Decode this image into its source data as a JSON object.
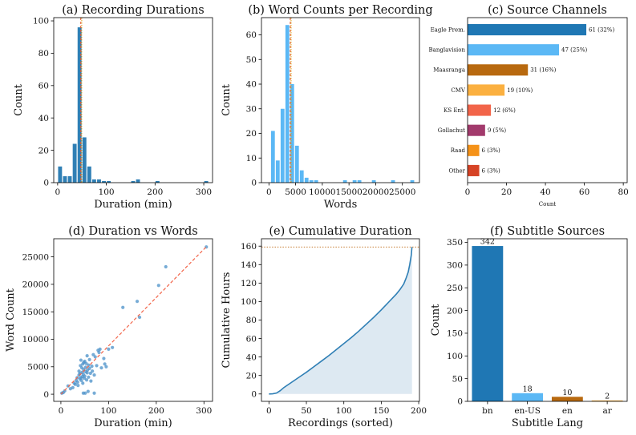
{
  "chart_data": [
    {
      "id": "a",
      "type": "bar",
      "title": "(a) Recording Durations",
      "xlabel": "Duration (min)",
      "ylabel": "Count",
      "xlim": [
        -8,
        318
      ],
      "ylim": [
        0,
        102
      ],
      "xticks": [
        0,
        100,
        200,
        300
      ],
      "yticks": [
        0,
        20,
        40,
        60,
        80,
        100
      ],
      "bin_width": 10,
      "bins": [
        [
          0,
          10
        ],
        [
          10,
          4
        ],
        [
          20,
          4
        ],
        [
          30,
          24
        ],
        [
          40,
          96
        ],
        [
          50,
          28
        ],
        [
          60,
          10
        ],
        [
          70,
          2
        ],
        [
          80,
          2
        ],
        [
          90,
          1
        ],
        [
          100,
          1
        ],
        [
          150,
          1
        ],
        [
          160,
          2
        ],
        [
          200,
          1
        ],
        [
          300,
          1
        ]
      ],
      "mean": 47.5,
      "median": 49.5,
      "color": "#2f7fb5"
    },
    {
      "id": "b",
      "type": "bar",
      "title": "(b) Word Counts per Recording",
      "xlabel": "Words",
      "ylabel": "Count",
      "xlim": [
        -1400,
        28200
      ],
      "ylim": [
        0,
        67
      ],
      "xticks": [
        0,
        5000,
        10000,
        15000,
        20000,
        25000
      ],
      "xtick_labels": [
        "0",
        "5000",
        "10000",
        "15000",
        "20000",
        "25000"
      ],
      "yticks": [
        0,
        10,
        20,
        30,
        40,
        50,
        60
      ],
      "bin_width": 900,
      "bins": [
        [
          300,
          21
        ],
        [
          1200,
          9
        ],
        [
          2100,
          30
        ],
        [
          3000,
          64
        ],
        [
          3900,
          40
        ],
        [
          4800,
          15
        ],
        [
          5700,
          5
        ],
        [
          6600,
          2
        ],
        [
          7500,
          1
        ],
        [
          8400,
          1
        ],
        [
          13800,
          1
        ],
        [
          15600,
          1
        ],
        [
          16500,
          1
        ],
        [
          19200,
          1
        ],
        [
          22800,
          1
        ],
        [
          26400,
          1
        ]
      ],
      "mean": 4000,
      "median": 4150,
      "color": "#5bb8f5"
    },
    {
      "id": "c",
      "type": "bar",
      "orientation": "horizontal",
      "title": "(c) Source Channels",
      "xlabel": "Count",
      "xlim": [
        0,
        82
      ],
      "xticks": [
        0,
        20,
        40,
        60,
        80
      ],
      "categories": [
        "Eagle Prem.",
        "Banglavision",
        "Maasranga",
        "CMV",
        "KS Ent.",
        "Gollachut",
        "Raad",
        "Other"
      ],
      "values": [
        61,
        47,
        31,
        19,
        12,
        9,
        6,
        6
      ],
      "value_labels": [
        "61 (32%)",
        "47 (25%)",
        "31 (16%)",
        "19 (10%)",
        "12 (6%)",
        "9 (5%)",
        "6 (3%)",
        "6 (3%)"
      ],
      "colors": [
        "#1f77b4",
        "#5bb8f5",
        "#b8690f",
        "#fbb040",
        "#f26449",
        "#a23a6c",
        "#f59218",
        "#d64325"
      ]
    },
    {
      "id": "d",
      "type": "scatter",
      "title": "(d) Duration vs Words",
      "xlabel": "Duration (min)",
      "ylabel": "Word Count",
      "xlim": [
        -15,
        318
      ],
      "ylim": [
        -1300,
        28300
      ],
      "xticks": [
        0,
        100,
        200,
        300
      ],
      "yticks": [
        0,
        5000,
        10000,
        15000,
        20000,
        25000
      ],
      "points": [
        [
          2,
          200
        ],
        [
          5,
          300
        ],
        [
          8,
          600
        ],
        [
          15,
          1500
        ],
        [
          20,
          1000
        ],
        [
          25,
          1200
        ],
        [
          28,
          2000
        ],
        [
          30,
          1800
        ],
        [
          32,
          2500
        ],
        [
          34,
          3000
        ],
        [
          35,
          2200
        ],
        [
          36,
          1600
        ],
        [
          38,
          3500
        ],
        [
          38,
          4200
        ],
        [
          40,
          2800
        ],
        [
          40,
          3800
        ],
        [
          41,
          5200
        ],
        [
          42,
          6200
        ],
        [
          42,
          3000
        ],
        [
          43,
          2500
        ],
        [
          44,
          4800
        ],
        [
          45,
          3200
        ],
        [
          45,
          4000
        ],
        [
          46,
          5500
        ],
        [
          46,
          2000
        ],
        [
          47,
          3600
        ],
        [
          47,
          200
        ],
        [
          48,
          4500
        ],
        [
          48,
          5800
        ],
        [
          49,
          2900
        ],
        [
          50,
          3300
        ],
        [
          50,
          6000
        ],
        [
          51,
          200
        ],
        [
          52,
          4100
        ],
        [
          52,
          4900
        ],
        [
          53,
          5600
        ],
        [
          54,
          2600
        ],
        [
          55,
          7000
        ],
        [
          55,
          3900
        ],
        [
          56,
          4400
        ],
        [
          57,
          500
        ],
        [
          58,
          3100
        ],
        [
          58,
          5300
        ],
        [
          60,
          4700
        ],
        [
          60,
          6300
        ],
        [
          62,
          3800
        ],
        [
          63,
          2400
        ],
        [
          65,
          5100
        ],
        [
          66,
          4200
        ],
        [
          68,
          7200
        ],
        [
          70,
          3500
        ],
        [
          70,
          200
        ],
        [
          72,
          6800
        ],
        [
          75,
          5200
        ],
        [
          78,
          8000
        ],
        [
          80,
          7600
        ],
        [
          82,
          8200
        ],
        [
          85,
          4800
        ],
        [
          90,
          6500
        ],
        [
          92,
          5500
        ],
        [
          95,
          5000
        ],
        [
          100,
          8200
        ],
        [
          108,
          8500
        ],
        [
          130,
          15800
        ],
        [
          160,
          16900
        ],
        [
          165,
          14000
        ],
        [
          205,
          19800
        ],
        [
          220,
          23200
        ],
        [
          305,
          26800
        ]
      ],
      "fit": {
        "slope": 88,
        "intercept": 0,
        "x_range": [
          0,
          305
        ]
      },
      "color": "#4a90c8",
      "fit_color": "#f26449"
    },
    {
      "id": "e",
      "type": "line",
      "title": "(e) Cumulative Duration",
      "xlabel": "Recordings (sorted)",
      "ylabel": "Cumulative Hours",
      "xlim": [
        -10,
        201
      ],
      "ylim": [
        -8,
        168
      ],
      "xticks": [
        0,
        50,
        100,
        150,
        200
      ],
      "yticks": [
        0,
        20,
        40,
        60,
        80,
        100,
        120,
        140,
        160
      ],
      "x": [
        0,
        5,
        10,
        15,
        20,
        30,
        40,
        50,
        60,
        70,
        80,
        90,
        100,
        110,
        120,
        130,
        140,
        150,
        160,
        170,
        175,
        180,
        183,
        186,
        188,
        190,
        191
      ],
      "y": [
        0,
        0.2,
        1,
        3.5,
        7,
        12.5,
        18,
        23.5,
        29.5,
        35.5,
        41.5,
        48,
        54.5,
        61,
        68,
        75.5,
        83,
        91,
        99.5,
        108,
        113,
        119,
        125,
        132,
        140,
        150,
        159
      ],
      "reference_line": 159,
      "color": "#2f7fb5",
      "fill_color": "#dde9f2",
      "ref_color": "#c57a2e"
    },
    {
      "id": "f",
      "type": "bar",
      "title": "(f) Subtitle Sources",
      "xlabel": "Subtitle Lang",
      "ylabel": "Count",
      "ylim": [
        0,
        358
      ],
      "yticks": [
        0,
        50,
        100,
        150,
        200,
        250,
        300,
        350
      ],
      "categories": [
        "bn",
        "en-US",
        "en",
        "ar"
      ],
      "values": [
        342,
        18,
        10,
        2
      ],
      "colors": [
        "#1f77b4",
        "#5bb8f5",
        "#b8690f",
        "#fbb040"
      ]
    }
  ]
}
